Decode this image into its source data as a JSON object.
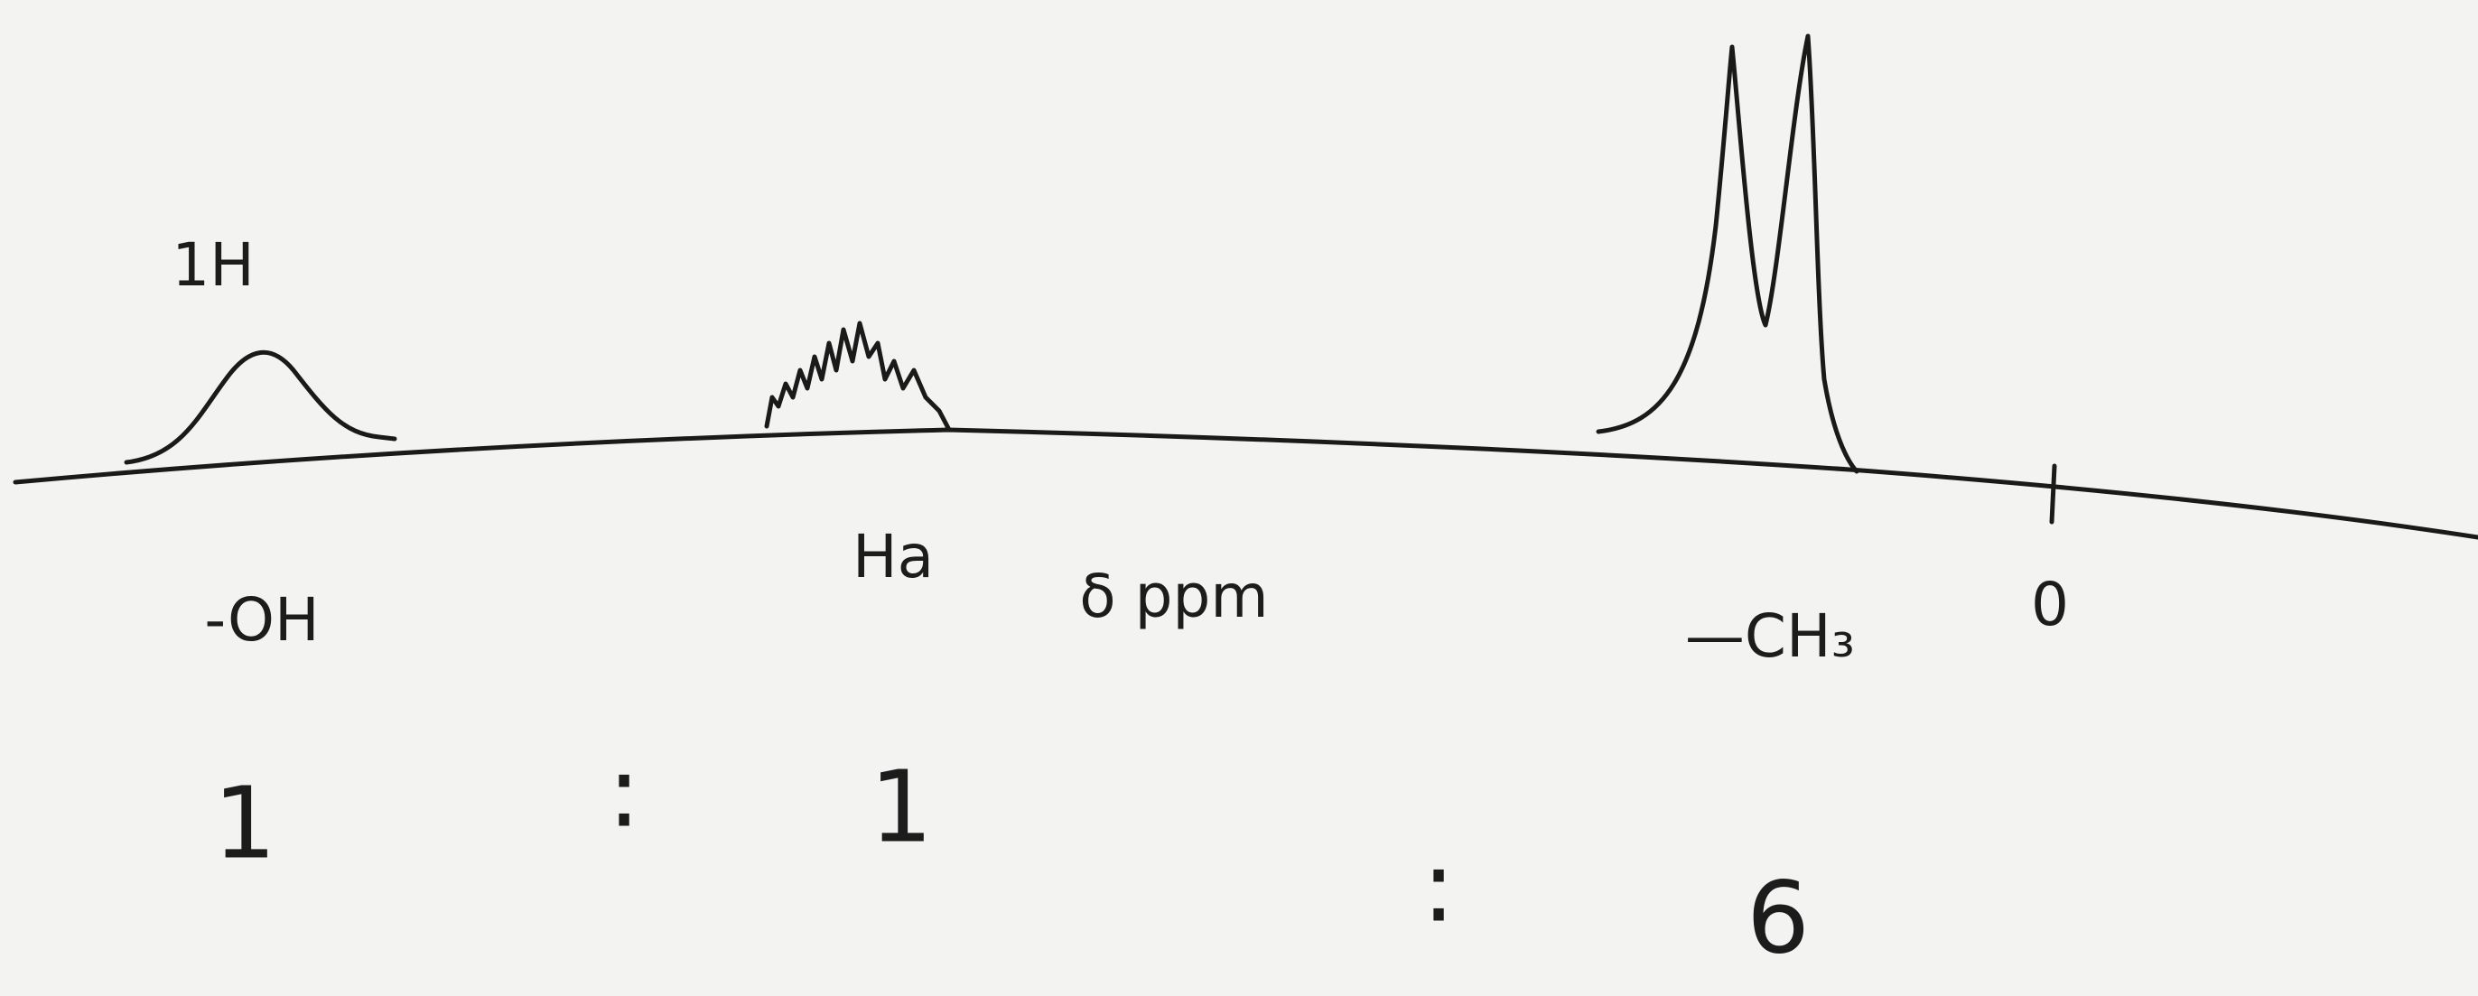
{
  "title": "1H",
  "axis_label": "δ ppm",
  "zero_label": "0",
  "peaks": [
    {
      "label": "-OH",
      "ratio": 1
    },
    {
      "label": "Ha",
      "ratio": 1
    },
    {
      "label": "—CH₃",
      "ratio": 6
    }
  ],
  "ratio_separators": [
    ":",
    ":"
  ]
}
